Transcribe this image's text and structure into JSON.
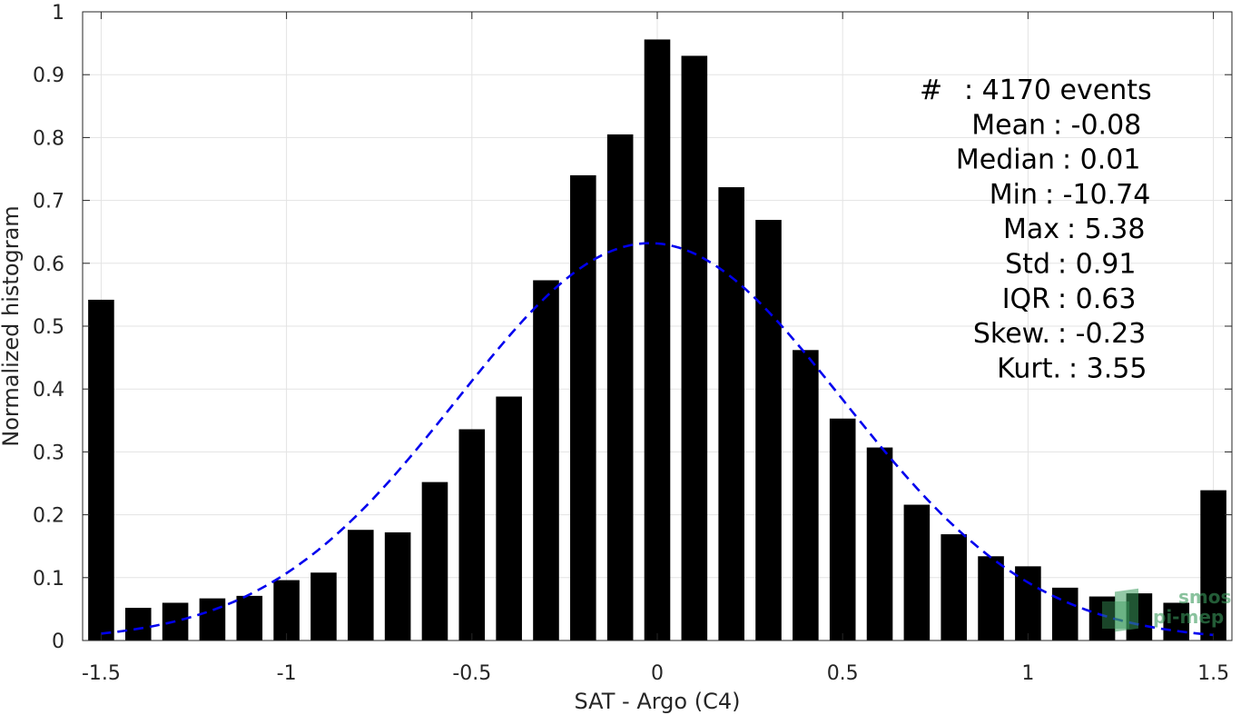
{
  "chart_data": {
    "type": "bar",
    "xlabel": "SAT - Argo (C4)",
    "ylabel": "Normalized histogram",
    "xlim": [
      -1.55,
      1.55
    ],
    "ylim": [
      0,
      1
    ],
    "grid": true,
    "x_ticks": [
      -1.5,
      -1,
      -0.5,
      0,
      0.5,
      1,
      1.5
    ],
    "x_tick_labels": [
      "-1.5",
      "-1",
      "-0.5",
      "0",
      "0.5",
      "1",
      "1.5"
    ],
    "y_ticks": [
      0,
      0.1,
      0.2,
      0.3,
      0.4,
      0.5,
      0.6,
      0.7,
      0.8,
      0.9,
      1
    ],
    "y_tick_labels": [
      "0",
      "0.1",
      "0.2",
      "0.3",
      "0.4",
      "0.5",
      "0.6",
      "0.7",
      "0.8",
      "0.9",
      "1"
    ],
    "bar_color": "#000000",
    "bar_width": 0.07,
    "bars": {
      "x": [
        -1.5,
        -1.4,
        -1.3,
        -1.2,
        -1.1,
        -1.0,
        -0.9,
        -0.8,
        -0.7,
        -0.6,
        -0.5,
        -0.4,
        -0.3,
        -0.2,
        -0.1,
        0.0,
        0.1,
        0.2,
        0.3,
        0.4,
        0.5,
        0.6,
        0.7,
        0.8,
        0.9,
        1.0,
        1.1,
        1.2,
        1.3,
        1.4,
        1.5
      ],
      "values": [
        0.542,
        0.052,
        0.06,
        0.067,
        0.071,
        0.096,
        0.108,
        0.176,
        0.172,
        0.252,
        0.336,
        0.388,
        0.573,
        0.74,
        0.805,
        0.956,
        0.93,
        0.721,
        0.669,
        0.462,
        0.353,
        0.307,
        0.216,
        0.169,
        0.134,
        0.118,
        0.084,
        0.07,
        0.075,
        0.06,
        0.239
      ]
    },
    "fit_curve": {
      "style": "dashed",
      "color": "#0000ee",
      "mean": -0.02,
      "std": 0.52,
      "peak": 0.632,
      "x_range": [
        -1.5,
        1.5
      ]
    },
    "annotations": [
      {
        "label": "#",
        "value": ": 4170 events"
      },
      {
        "label": "Mean",
        "value": ": -0.08"
      },
      {
        "label": "Median",
        "value": ": 0.01"
      },
      {
        "label": "Min",
        "value": ": -10.74"
      },
      {
        "label": "Max",
        "value": ": 5.38"
      },
      {
        "label": "Std",
        "value": ": 0.91"
      },
      {
        "label": "IQR",
        "value": ": 0.63"
      },
      {
        "label": "Skew.",
        "value": ": -0.23"
      },
      {
        "label": "Kurt.",
        "value": ": 3.55"
      }
    ]
  },
  "watermark": {
    "line1": "smos",
    "line2": "pi-mep",
    "color": "#3a9a5c"
  }
}
